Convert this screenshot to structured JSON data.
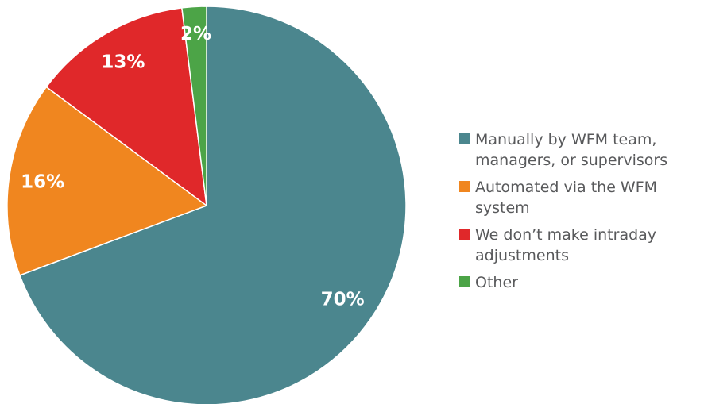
{
  "chart_data": {
    "type": "pie",
    "categories": [
      "Manually by WFM team, managers, or supervisors",
      "Automated via the WFM system",
      "We don’t make intraday adjustments",
      "Other"
    ],
    "values": [
      70,
      16,
      13,
      2
    ],
    "value_labels": [
      "70%",
      "16%",
      "13%",
      "2%"
    ],
    "colors": [
      "#4b868e",
      "#f0861f",
      "#e0282a",
      "#4ca447"
    ]
  }
}
